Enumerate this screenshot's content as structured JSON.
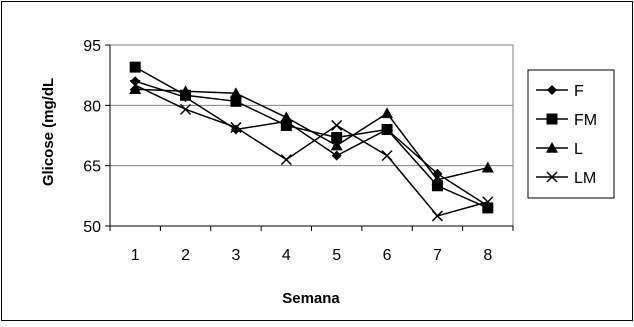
{
  "chart_data": {
    "type": "line",
    "xlabel": "Semana",
    "ylabel": "Glicose (mg/dL",
    "categories": [
      "1",
      "2",
      "3",
      "4",
      "5",
      "6",
      "7",
      "8"
    ],
    "ylim": [
      50,
      95
    ],
    "yticks": [
      "50",
      "65",
      "80",
      "95"
    ],
    "grid": "horizontal",
    "legend": "right",
    "series": [
      {
        "name": "F",
        "marker": "diamond",
        "color": "#000000",
        "values": [
          86,
          82,
          74,
          76,
          67.5,
          74,
          63,
          55
        ]
      },
      {
        "name": "FM",
        "marker": "square",
        "color": "#000000",
        "values": [
          89.5,
          82.5,
          81,
          75,
          72,
          74,
          60,
          54.5
        ]
      },
      {
        "name": "L",
        "marker": "triangle",
        "color": "#000000",
        "values": [
          84,
          83.5,
          83,
          77,
          70,
          78,
          61.5,
          64.5
        ]
      },
      {
        "name": "LM",
        "marker": "x",
        "color": "#000000",
        "values": [
          85,
          79,
          74.5,
          66.5,
          75,
          67.5,
          52.5,
          56
        ]
      }
    ]
  }
}
